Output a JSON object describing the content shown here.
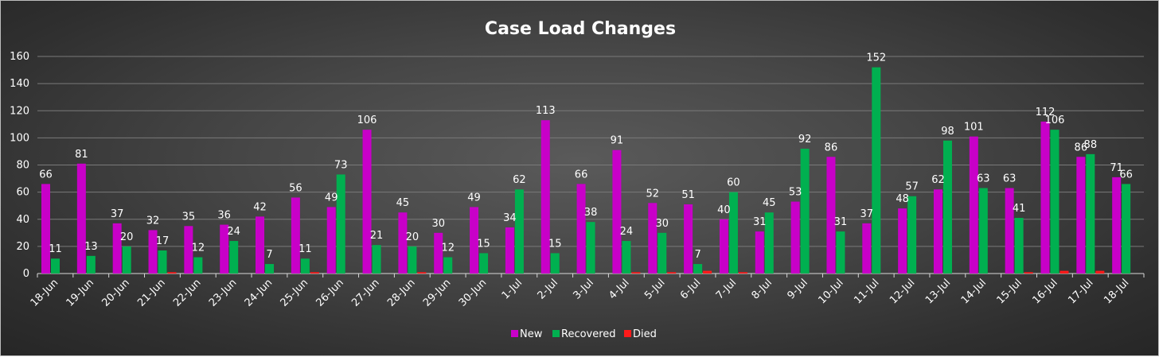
{
  "chart_data": {
    "type": "bar",
    "title": "Case Load Changes",
    "xlabel": "",
    "ylabel": "",
    "ylim": [
      0,
      160
    ],
    "yticks": [
      0,
      20,
      40,
      60,
      80,
      100,
      120,
      140,
      160
    ],
    "grid": true,
    "legend_position": "bottom",
    "categories": [
      "18-Jun",
      "19-Jun",
      "20-Jun",
      "21-Jun",
      "22-Jun",
      "23-Jun",
      "24-Jun",
      "25-Jun",
      "26-Jun",
      "27-Jun",
      "28-Jun",
      "29-Jun",
      "30-Jun",
      "1-Jul",
      "2-Jul",
      "3-Jul",
      "4-Jul",
      "5-Jul",
      "6-Jul",
      "7-Jul",
      "8-Jul",
      "9-Jul",
      "10-Jul",
      "11-Jul",
      "12-Jul",
      "13-Jul",
      "14-Jul",
      "15-Jul",
      "16-Jul",
      "17-Jul",
      "18-Jul"
    ],
    "series": [
      {
        "name": "New",
        "color": "#c800c8",
        "labeled": true,
        "values": [
          66,
          81,
          37,
          32,
          35,
          36,
          42,
          56,
          49,
          106,
          45,
          30,
          49,
          34,
          113,
          66,
          91,
          52,
          51,
          40,
          31,
          53,
          86,
          37,
          48,
          62,
          101,
          63,
          112,
          86,
          71
        ]
      },
      {
        "name": "Recovered",
        "color": "#00b050",
        "labeled": true,
        "values": [
          11,
          13,
          20,
          17,
          12,
          24,
          7,
          11,
          73,
          21,
          20,
          12,
          15,
          62,
          15,
          38,
          24,
          30,
          7,
          60,
          45,
          92,
          31,
          152,
          57,
          98,
          63,
          41,
          106,
          88,
          66
        ]
      },
      {
        "name": "Died",
        "color": "#ff1a1a",
        "labeled": false,
        "values": [
          0,
          0,
          0,
          1,
          0,
          0,
          0,
          1,
          0,
          0,
          1,
          0,
          0,
          0,
          0,
          0,
          1,
          1,
          2,
          1,
          0,
          0,
          0,
          0,
          0,
          0,
          0,
          1,
          2,
          2,
          0
        ]
      }
    ]
  }
}
